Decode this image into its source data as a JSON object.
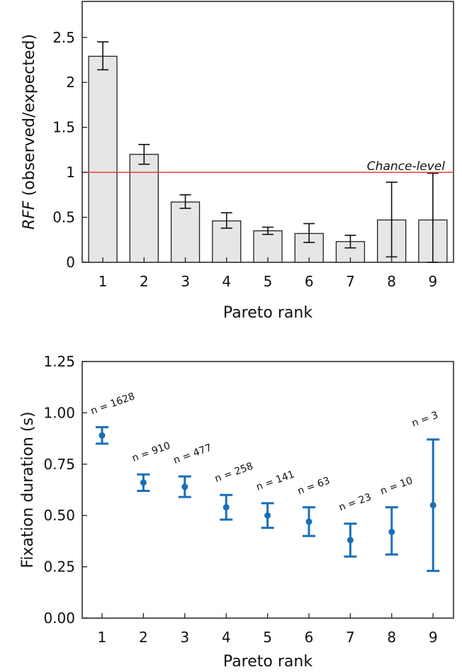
{
  "chart_data": [
    {
      "type": "bar",
      "categories": [
        "1",
        "2",
        "3",
        "4",
        "5",
        "6",
        "7",
        "8",
        "9"
      ],
      "values": [
        2.29,
        1.2,
        0.67,
        0.46,
        0.35,
        0.32,
        0.23,
        0.47,
        0.47
      ],
      "error_low": [
        2.14,
        1.09,
        0.6,
        0.38,
        0.31,
        0.22,
        0.16,
        0.06,
        0.0
      ],
      "error_high": [
        2.45,
        1.31,
        0.75,
        0.55,
        0.39,
        0.43,
        0.3,
        0.89,
        0.99
      ],
      "xlabel": "Pareto rank",
      "ylabel_italic": "RFF",
      "ylabel_rest": " (observed/expected)",
      "ylim": [
        0,
        2.9
      ],
      "yticks": [
        "0",
        "0.5",
        "1",
        "1.5",
        "2",
        "2.5"
      ],
      "ytick_values": [
        0,
        0.5,
        1,
        1.5,
        2,
        2.5
      ],
      "reference_line": {
        "value": 1,
        "label": "Chance-level",
        "color": "#e8403a"
      },
      "bar_color": "#e6e6e6",
      "grid": false
    },
    {
      "type": "scatter",
      "categories": [
        "1",
        "2",
        "3",
        "4",
        "5",
        "6",
        "7",
        "8",
        "9"
      ],
      "values": [
        0.89,
        0.66,
        0.64,
        0.54,
        0.5,
        0.47,
        0.38,
        0.42,
        0.55
      ],
      "error_low": [
        0.85,
        0.62,
        0.59,
        0.48,
        0.44,
        0.4,
        0.3,
        0.31,
        0.23
      ],
      "error_high": [
        0.93,
        0.7,
        0.69,
        0.6,
        0.56,
        0.54,
        0.46,
        0.54,
        0.87
      ],
      "annotations": [
        "n = 1628",
        "n = 910",
        "n = 477",
        "n = 258",
        "n = 141",
        "n = 63",
        "n = 23",
        "n = 10",
        "n = 3"
      ],
      "xlabel": "Pareto rank",
      "ylabel": "Fixation duration (s)",
      "ylim": [
        0,
        1.25
      ],
      "yticks": [
        "0.00",
        "0.25",
        "0.50",
        "0.75",
        "1.00",
        "1.25"
      ],
      "ytick_values": [
        0,
        0.25,
        0.5,
        0.75,
        1.0,
        1.25
      ],
      "marker_color": "#1a6fb8",
      "grid": false
    }
  ]
}
